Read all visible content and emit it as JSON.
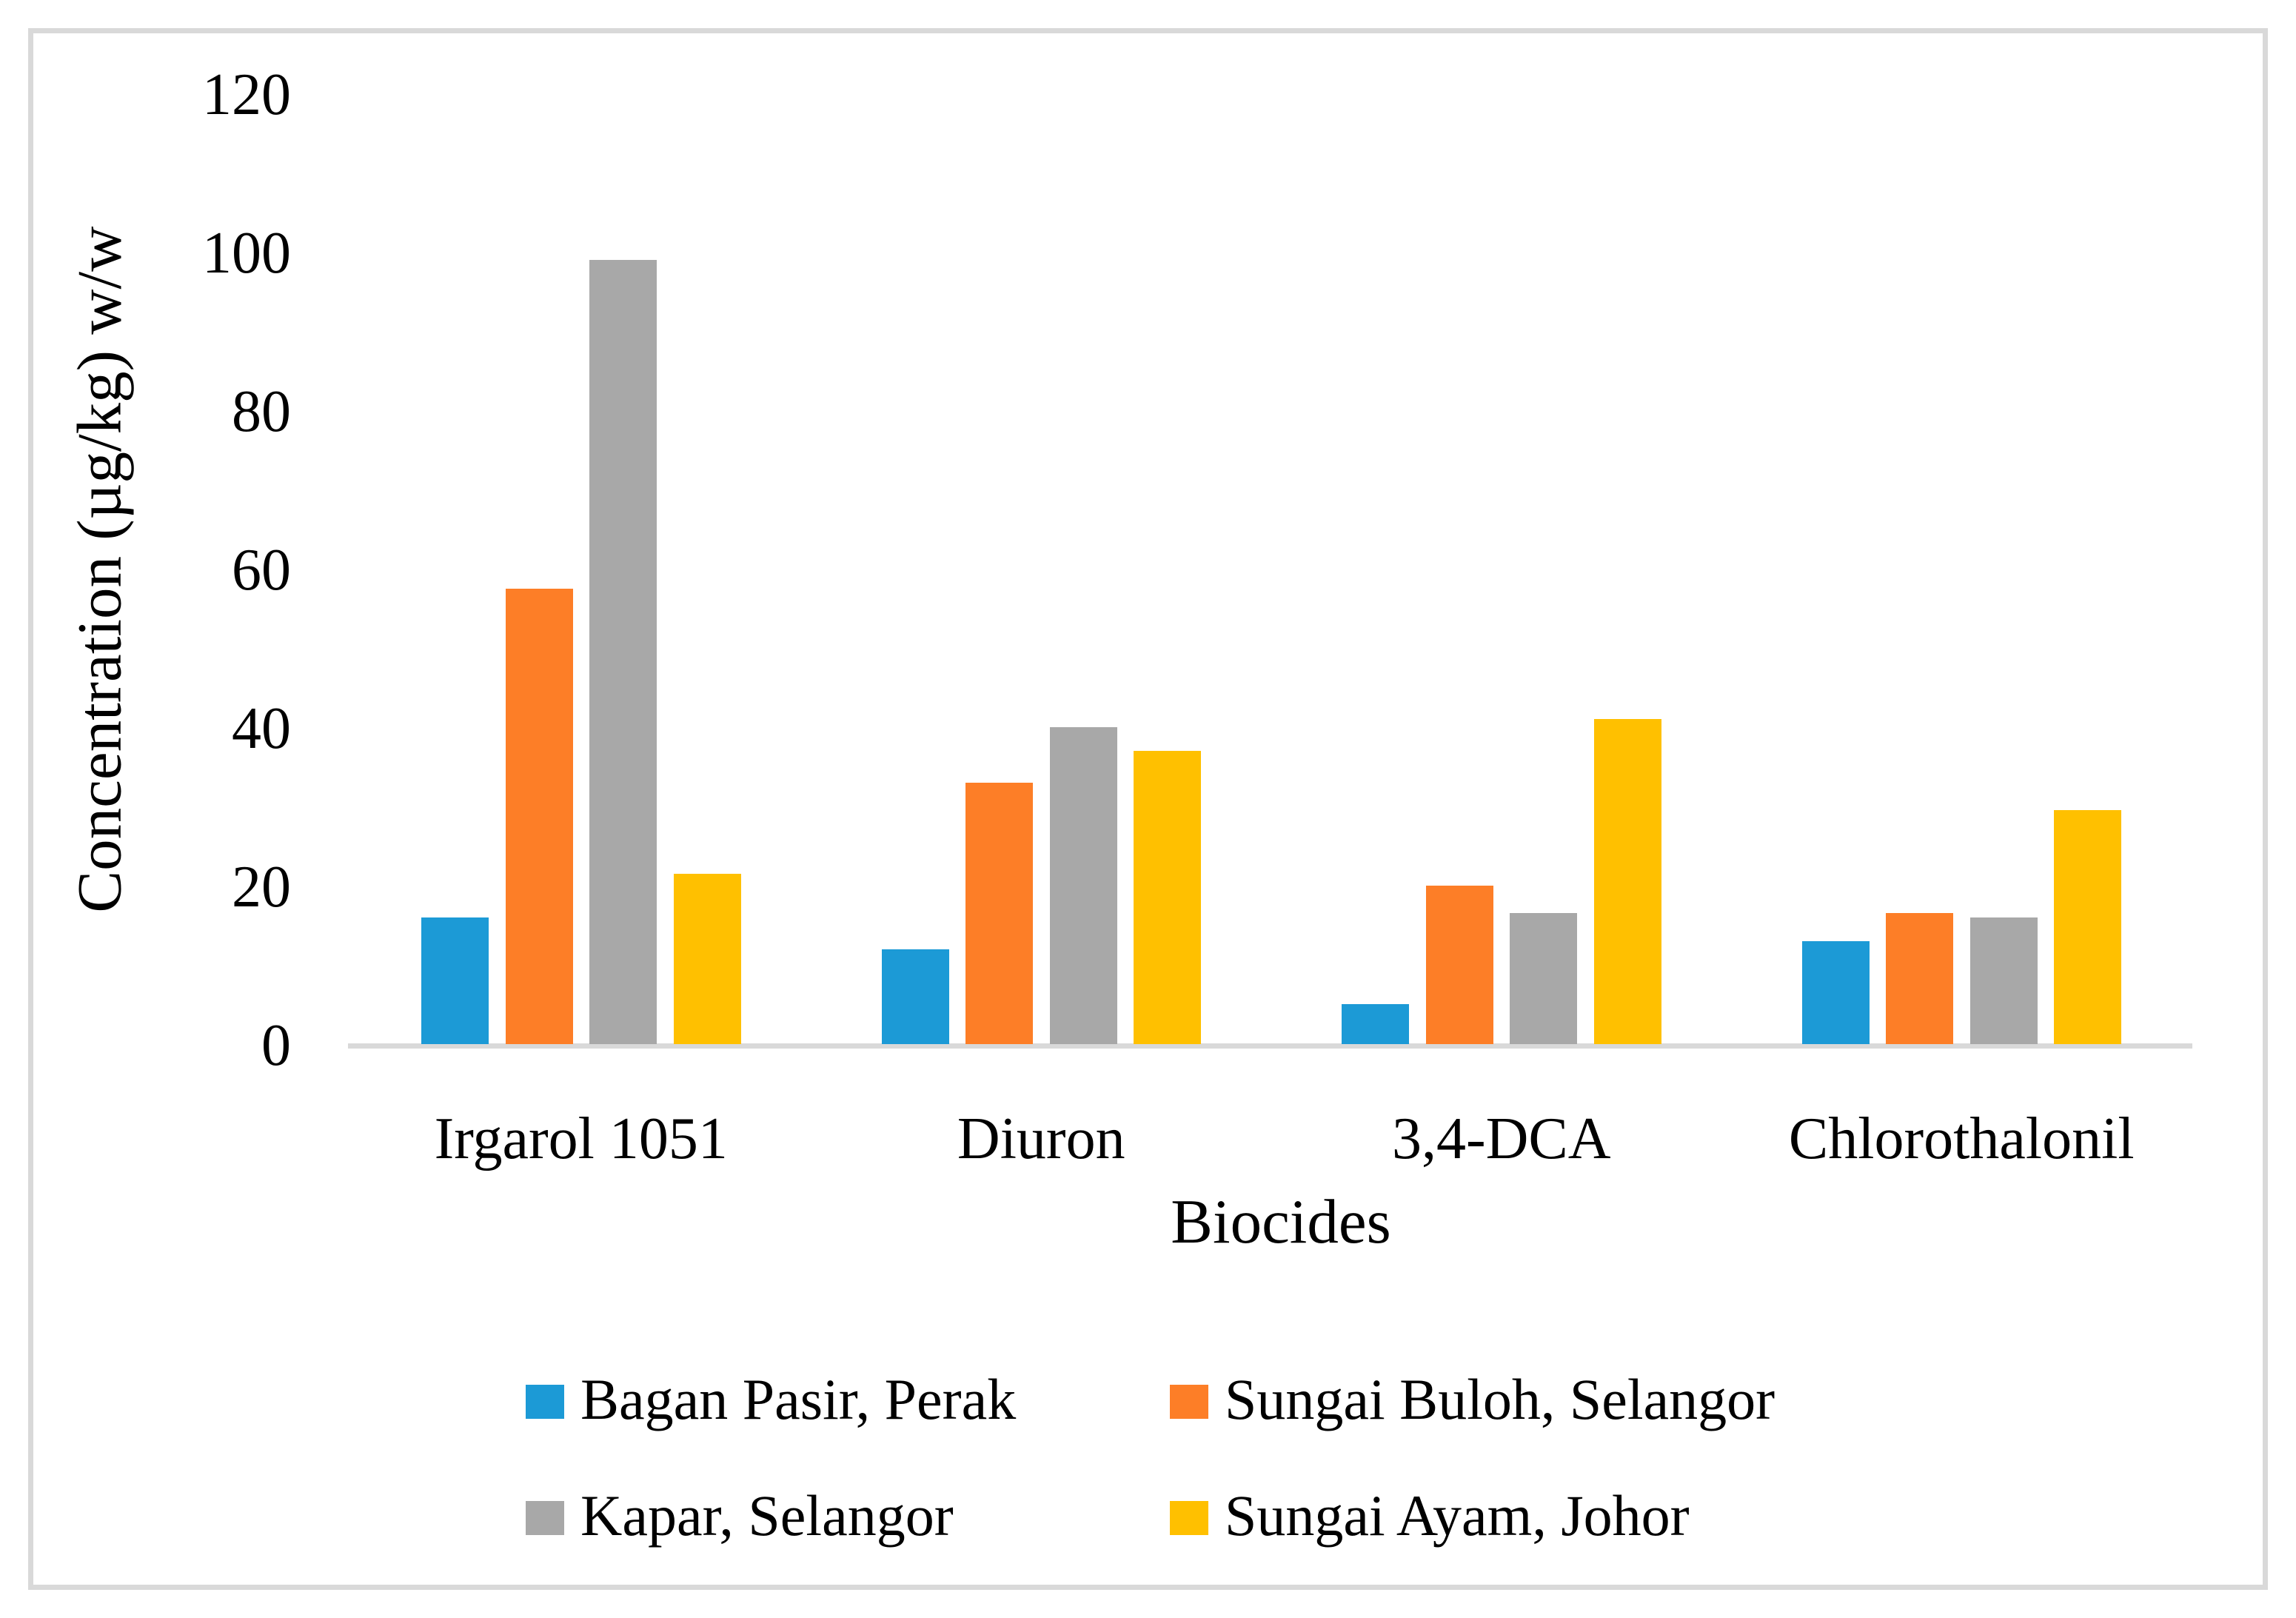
{
  "figure": {
    "background_color": "#FFFFFF",
    "border_color": "#D9D9D9",
    "axis_line_color": "#D9D9D9"
  },
  "chart_data": {
    "type": "bar",
    "title": "",
    "xlabel": "Biocides",
    "ylabel": "Concentration (µg/kg) w/w",
    "categories": [
      "Irgarol 1051",
      "Diuron",
      "3,4-DCA",
      "Chlorothalonil"
    ],
    "series": [
      {
        "name": "Bagan Pasir, Perak",
        "color": "#1C9AD6",
        "values": [
          16,
          12,
          5,
          13
        ]
      },
      {
        "name": "Sungai Buloh, Selangor",
        "color": "#FD7E27",
        "values": [
          57.5,
          33,
          20,
          16.5
        ]
      },
      {
        "name": "Kapar, Selangor",
        "color": "#A8A8A8",
        "values": [
          99,
          40,
          16.5,
          16
        ]
      },
      {
        "name": "Sungai Ayam, Johor",
        "color": "#FFC000",
        "values": [
          21.5,
          37,
          41,
          29.5
        ]
      }
    ],
    "ylim": [
      0,
      120
    ],
    "yticks": [
      0,
      20,
      40,
      60,
      80,
      100,
      120
    ],
    "grid": false,
    "legend_position": "bottom"
  }
}
